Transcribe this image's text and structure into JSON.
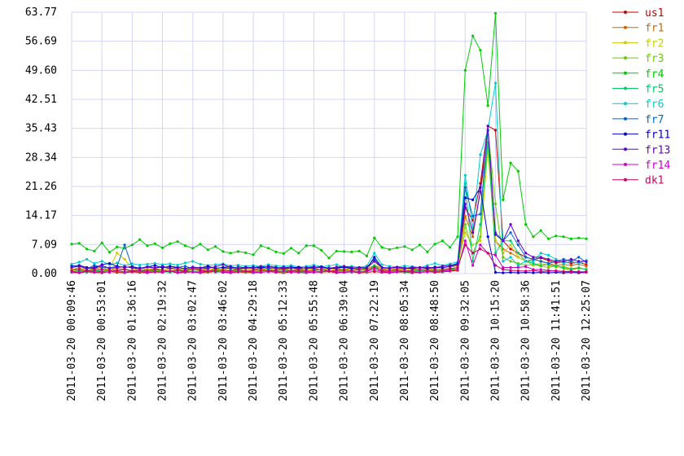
{
  "chart_data": {
    "type": "line",
    "categories": [
      "2011-03-20 00:09:46",
      null,
      null,
      null,
      "2011-03-20 00:53:01",
      null,
      null,
      null,
      "2011-03-20 01:36:16",
      null,
      null,
      null,
      "2011-03-20 02:19:32",
      null,
      null,
      null,
      "2011-03-20 03:02:47",
      null,
      null,
      null,
      "2011-03-20 03:46:02",
      null,
      null,
      null,
      "2011-03-20 04:29:18",
      null,
      null,
      null,
      "2011-03-20 05:12:33",
      null,
      null,
      null,
      "2011-03-20 05:55:48",
      null,
      null,
      null,
      "2011-03-20 06:39:04",
      null,
      null,
      null,
      "2011-03-20 07:22:19",
      null,
      null,
      null,
      "2011-03-20 08:05:34",
      null,
      null,
      null,
      "2011-03-20 08:48:50",
      null,
      null,
      null,
      "2011-03-20 09:32:05",
      null,
      null,
      null,
      "2011-03-20 10:15:20",
      null,
      null,
      null,
      "2011-03-20 10:58:36",
      null,
      null,
      null,
      "2011-03-20 11:41:51",
      null,
      null,
      null,
      "2011-03-20 12:25:07"
    ],
    "ylim": [
      0,
      63.77
    ],
    "yticks": [
      {
        "value": 0,
        "label": "0.00"
      },
      7.09,
      14.17,
      21.26,
      28.34,
      35.43,
      42.51,
      {
        "value": 49.6,
        "label": "49.60"
      },
      56.69,
      63.77
    ],
    "grid": true,
    "legend": "right",
    "series": [
      {
        "name": "us1",
        "color": "#cc0000",
        "values": [
          0.3,
          0.2,
          0.4,
          0.3,
          0.2,
          0.5,
          0.3,
          0.2,
          0.4,
          0.3,
          0.2,
          0.4,
          0.3,
          0.5,
          0.2,
          0.3,
          0.4,
          0.2,
          0.3,
          0.5,
          0.3,
          0.2,
          0.4,
          0.3,
          0.2,
          0.3,
          0.5,
          0.3,
          0.2,
          0.4,
          0.3,
          0.2,
          0.4,
          0.3,
          0.5,
          0.2,
          0.3,
          0.4,
          0.2,
          0.3,
          0.5,
          0.3,
          0.2,
          0.4,
          0.3,
          0.2,
          0.3,
          0.5,
          0.3,
          0.4,
          0.6,
          0.8,
          16.0,
          13.0,
          22.0,
          36.0,
          35.0,
          8.0,
          6.0,
          5.0,
          4.0,
          3.5,
          3.8,
          3.2,
          2.6,
          2.9,
          2.5,
          2.8,
          2.2
        ]
      },
      {
        "name": "fr1",
        "color": "#cc6600",
        "values": [
          1.0,
          1.4,
          0.8,
          1.2,
          1.6,
          0.9,
          1.3,
          1.1,
          0.7,
          1.5,
          1.0,
          1.2,
          0.8,
          1.4,
          1.1,
          0.9,
          1.3,
          1.0,
          1.2,
          0.8,
          1.1,
          1.5,
          0.9,
          1.2,
          1.0,
          1.3,
          0.8,
          1.1,
          1.4,
          0.9,
          1.2,
          1.0,
          1.3,
          0.8,
          1.1,
          1.2,
          0.9,
          1.4,
          1.0,
          1.1,
          2.0,
          1.2,
          0.9,
          1.3,
          1.0,
          1.2,
          0.8,
          1.1,
          1.4,
          1.0,
          1.5,
          2.0,
          14.0,
          9.0,
          20.0,
          32.0,
          8.0,
          6.0,
          5.0,
          4.0,
          3.0,
          3.5,
          3.0,
          2.5,
          2.0,
          2.2,
          2.0,
          2.3,
          1.8
        ]
      },
      {
        "name": "fr2",
        "color": "#cccc00",
        "values": [
          1.2,
          0.8,
          1.5,
          1.0,
          0.9,
          1.3,
          5.0,
          3.5,
          1.1,
          0.8,
          1.0,
          1.4,
          0.9,
          1.2,
          0.7,
          1.1,
          1.3,
          0.8,
          1.0,
          1.2,
          0.9,
          1.1,
          0.8,
          1.3,
          1.0,
          0.7,
          1.2,
          0.9,
          1.1,
          1.0,
          0.8,
          1.2,
          1.0,
          0.9,
          1.3,
          0.8,
          1.1,
          1.0,
          0.9,
          1.2,
          3.0,
          1.0,
          0.8,
          1.1,
          0.9,
          1.2,
          1.0,
          0.8,
          1.3,
          1.1,
          1.5,
          2.5,
          10.0,
          7.0,
          8.0,
          30.0,
          8.0,
          5.0,
          7.0,
          4.0,
          3.0,
          2.0,
          2.5,
          2.0,
          1.5,
          1.8,
          1.2,
          1.5,
          1.0
        ]
      },
      {
        "name": "fr3",
        "color": "#66cc00",
        "values": [
          0.5,
          0.7,
          0.4,
          0.6,
          0.8,
          0.5,
          0.6,
          0.4,
          0.7,
          0.5,
          0.6,
          0.8,
          0.5,
          0.4,
          0.6,
          0.7,
          0.5,
          0.6,
          0.4,
          0.8,
          0.5,
          0.6,
          0.7,
          0.4,
          0.5,
          0.6,
          0.8,
          0.5,
          0.4,
          0.6,
          0.7,
          0.5,
          0.6,
          0.4,
          0.5,
          0.7,
          0.6,
          0.5,
          0.4,
          0.6,
          1.5,
          0.6,
          0.5,
          0.7,
          0.4,
          0.6,
          0.5,
          0.8,
          0.6,
          0.5,
          0.8,
          1.2,
          12.0,
          5.0,
          9.0,
          35.0,
          17.0,
          4.0,
          3.0,
          2.5,
          2.0,
          2.2,
          1.8,
          1.5,
          2.0,
          1.2,
          1.0,
          1.3,
          1.1
        ]
      },
      {
        "name": "fr4",
        "color": "#00cc00",
        "values": [
          7.2,
          7.4,
          6.0,
          5.5,
          7.5,
          5.2,
          6.5,
          6.2,
          7.0,
          8.3,
          6.8,
          7.3,
          6.3,
          7.3,
          7.8,
          6.8,
          6.2,
          7.2,
          5.8,
          6.6,
          5.4,
          5.0,
          5.4,
          5.1,
          4.6,
          6.8,
          6.2,
          5.3,
          4.9,
          6.2,
          5.0,
          6.8,
          6.8,
          5.7,
          3.8,
          5.5,
          5.4,
          5.3,
          5.5,
          4.3,
          8.7,
          6.4,
          5.9,
          6.3,
          6.6,
          5.8,
          7.0,
          5.3,
          7.2,
          8.0,
          6.4,
          9.0,
          49.6,
          58.0,
          54.5,
          41.0,
          63.5,
          18.0,
          27.0,
          25.0,
          12.0,
          9.0,
          10.5,
          8.5,
          9.2,
          9.0,
          8.5,
          8.7,
          8.5
        ]
      },
      {
        "name": "fr5",
        "color": "#00cc66",
        "values": [
          0.4,
          0.6,
          0.3,
          0.8,
          0.5,
          0.4,
          0.7,
          0.3,
          0.5,
          0.9,
          0.4,
          0.6,
          0.5,
          0.3,
          0.7,
          0.4,
          0.6,
          0.5,
          0.8,
          0.3,
          0.5,
          0.4,
          0.6,
          0.7,
          0.3,
          0.5,
          0.4,
          0.6,
          0.5,
          0.8,
          0.4,
          0.3,
          0.6,
          0.5,
          0.7,
          0.4,
          0.5,
          0.3,
          0.6,
          0.4,
          2.0,
          0.5,
          0.4,
          0.6,
          0.3,
          0.5,
          0.7,
          0.4,
          0.6,
          0.5,
          1.0,
          1.5,
          22.0,
          3.0,
          12.0,
          32.0,
          5.0,
          8.0,
          8.0,
          5.0,
          3.0,
          2.5,
          2.0,
          2.2,
          1.8,
          1.5,
          1.2,
          1.4,
          1.0
        ]
      },
      {
        "name": "fr6",
        "color": "#00cccc",
        "values": [
          2.3,
          2.8,
          3.5,
          2.5,
          3.0,
          2.2,
          2.6,
          2.0,
          2.4,
          2.1,
          2.3,
          2.5,
          2.2,
          2.4,
          2.1,
          2.6,
          3.0,
          2.3,
          2.0,
          2.2,
          2.4,
          1.9,
          2.1,
          1.8,
          2.0,
          1.7,
          2.2,
          1.9,
          1.8,
          2.0,
          1.6,
          1.8,
          2.1,
          1.7,
          1.9,
          2.2,
          1.6,
          1.8,
          1.5,
          1.9,
          5.0,
          2.2,
          1.8,
          1.6,
          1.9,
          1.7,
          1.5,
          2.0,
          2.5,
          2.0,
          2.4,
          2.8,
          24.0,
          11.0,
          29.0,
          35.0,
          46.5,
          3.0,
          4.0,
          2.0,
          3.0,
          3.0,
          5.0,
          4.5,
          3.5,
          2.5,
          3.0,
          2.5,
          3.2
        ]
      },
      {
        "name": "fr7",
        "color": "#0066cc",
        "values": [
          1.5,
          1.8,
          1.2,
          2.0,
          1.6,
          1.4,
          1.8,
          7.0,
          1.5,
          1.3,
          1.7,
          1.4,
          1.6,
          1.3,
          1.5,
          1.8,
          1.2,
          1.4,
          1.6,
          1.3,
          1.5,
          1.2,
          1.7,
          1.4,
          1.3,
          1.6,
          1.2,
          1.5,
          1.4,
          1.7,
          1.3,
          1.5,
          1.2,
          1.6,
          1.4,
          1.3,
          1.5,
          1.2,
          1.4,
          1.6,
          3.5,
          1.4,
          1.3,
          1.5,
          1.2,
          1.6,
          1.4,
          1.3,
          1.5,
          1.8,
          2.0,
          2.5,
          21.0,
          14.0,
          14.5,
          35.0,
          10.0,
          8.0,
          10.0,
          7.0,
          4.0,
          3.5,
          3.0,
          2.5,
          3.0,
          3.5,
          3.0,
          4.0,
          2.8
        ]
      },
      {
        "name": "fr11",
        "color": "#0000cc",
        "values": [
          1.8,
          2.0,
          1.5,
          1.2,
          2.2,
          2.5,
          1.8,
          1.5,
          1.7,
          1.3,
          1.6,
          2.0,
          1.4,
          1.8,
          1.5,
          1.2,
          1.6,
          1.4,
          1.8,
          1.3,
          1.5,
          1.7,
          1.2,
          1.4,
          1.6,
          1.3,
          1.8,
          1.5,
          1.2,
          1.4,
          1.6,
          1.3,
          1.5,
          1.7,
          1.2,
          1.4,
          1.6,
          1.3,
          1.5,
          1.2,
          4.0,
          1.5,
          1.3,
          1.6,
          1.4,
          1.2,
          1.5,
          1.3,
          1.6,
          1.4,
          1.8,
          2.2,
          18.5,
          18.0,
          21.0,
          9.0,
          0.3,
          0.2,
          0.3,
          0.2,
          0.3,
          0.2,
          0.3,
          0.2,
          0.3,
          0.2,
          0.3,
          0.2,
          0.3
        ]
      },
      {
        "name": "fr13",
        "color": "#6600cc",
        "values": [
          1.5,
          1.8,
          1.2,
          1.6,
          2.0,
          1.3,
          1.5,
          1.7,
          1.4,
          1.2,
          1.6,
          1.4,
          1.8,
          1.3,
          1.5,
          1.2,
          1.6,
          1.4,
          1.3,
          1.7,
          2.2,
          1.5,
          1.3,
          1.6,
          1.4,
          1.8,
          1.5,
          1.3,
          1.6,
          1.4,
          1.2,
          1.5,
          1.7,
          1.4,
          1.3,
          1.6,
          1.8,
          1.5,
          1.3,
          1.4,
          3.0,
          1.5,
          1.4,
          1.6,
          1.3,
          1.5,
          1.4,
          1.6,
          1.3,
          1.8,
          2.0,
          2.2,
          17.0,
          10.0,
          20.0,
          36.0,
          9.5,
          8.0,
          12.0,
          8.0,
          5.0,
          4.0,
          4.0,
          3.5,
          3.0,
          3.0,
          3.5,
          3.0,
          3.0
        ]
      },
      {
        "name": "fr14",
        "color": "#cc00cc",
        "values": [
          0.5,
          0.3,
          0.6,
          0.4,
          0.5,
          0.3,
          0.7,
          0.4,
          0.5,
          0.6,
          0.3,
          0.5,
          0.4,
          0.6,
          0.3,
          0.5,
          0.4,
          0.3,
          0.6,
          0.5,
          0.4,
          0.3,
          0.5,
          0.6,
          0.4,
          0.3,
          0.5,
          0.4,
          0.6,
          0.3,
          0.5,
          0.4,
          0.3,
          0.5,
          0.6,
          0.4,
          0.3,
          0.5,
          0.4,
          0.6,
          1.0,
          0.5,
          0.3,
          0.4,
          0.6,
          0.5,
          0.3,
          0.4,
          0.5,
          0.6,
          0.8,
          1.0,
          8.0,
          2.0,
          7.0,
          5.0,
          4.5,
          1.5,
          1.5,
          1.5,
          1.7,
          1.0,
          1.0,
          0.8,
          0.6,
          0.5,
          0.4,
          0.5,
          0.3
        ]
      },
      {
        "name": "dk1",
        "color": "#cc0066",
        "values": [
          0.8,
          1.0,
          0.6,
          0.9,
          1.1,
          0.7,
          0.8,
          1.0,
          0.6,
          0.9,
          0.7,
          1.0,
          0.8,
          0.6,
          0.9,
          0.7,
          1.1,
          0.8,
          0.6,
          0.9,
          0.8,
          0.7,
          1.0,
          0.6,
          0.8,
          0.9,
          0.7,
          0.8,
          1.0,
          0.6,
          0.9,
          0.7,
          0.8,
          1.0,
          0.6,
          0.8,
          0.9,
          0.7,
          1.0,
          0.8,
          1.5,
          0.8,
          0.7,
          0.9,
          0.6,
          0.8,
          1.0,
          0.7,
          0.9,
          0.8,
          1.2,
          1.5,
          7.0,
          5.0,
          6.0,
          5.0,
          2.0,
          1.0,
          0.8,
          0.7,
          0.6,
          0.8,
          0.5,
          0.6,
          0.7,
          0.5,
          0.6,
          0.4,
          0.5
        ]
      }
    ]
  }
}
